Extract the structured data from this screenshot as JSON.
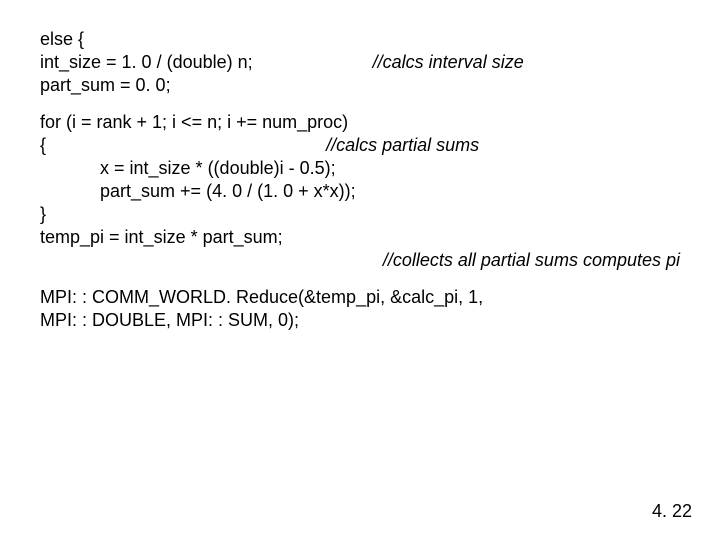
{
  "block1": {
    "l1": "else {",
    "l2a": "int_size = 1. 0 / (double) n;",
    "l2c": "//calcs interval size",
    "l3": "part_sum = 0. 0;"
  },
  "block2": {
    "l1": "for (i = rank + 1; i <= n; i += num_proc)",
    "l2a": "{",
    "l2c": "//calcs partial sums",
    "l3": "            x = int_size * ((double)i - 0.5);",
    "l4": "            part_sum += (4. 0 / (1. 0 + x*x));",
    "l5": "}",
    "l6": "temp_pi = int_size * part_sum;",
    "l7c": "//collects all partial sums computes pi"
  },
  "block3": {
    "l1": "MPI: : COMM_WORLD. Reduce(&temp_pi, &calc_pi, 1,",
    "l2": "MPI: : DOUBLE, MPI: : SUM, 0);"
  },
  "pagenum": "4. 22"
}
